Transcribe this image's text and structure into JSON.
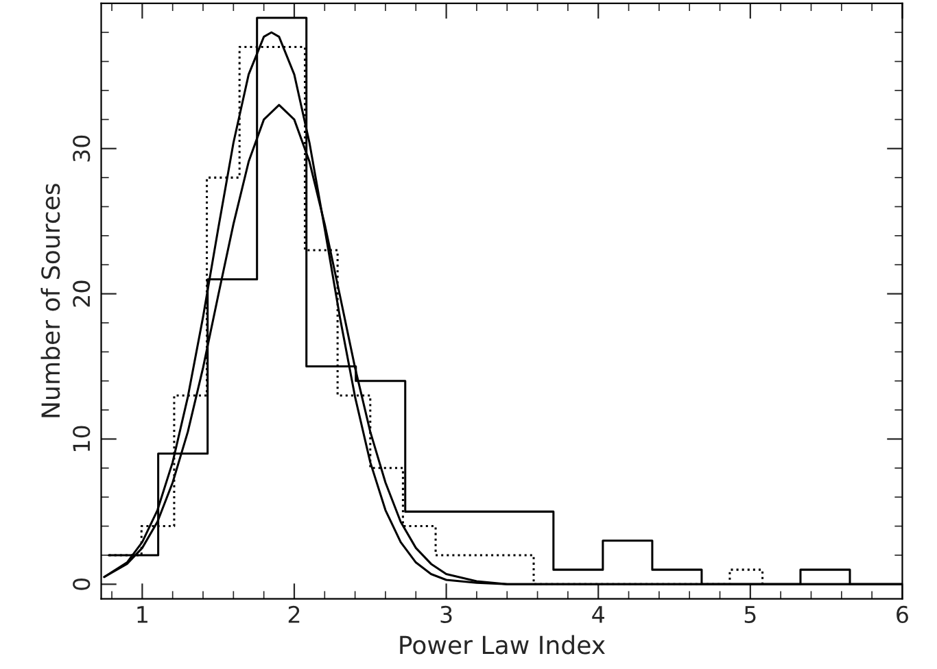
{
  "chart_data": {
    "type": "step",
    "xlabel": "Power Law Index",
    "ylabel": "Number of Sources",
    "xlim": [
      0.73,
      6
    ],
    "ylim": [
      -1,
      40
    ],
    "xticks": [
      {
        "value": 0.8,
        "label": null
      },
      1,
      {
        "value": 1.2,
        "label": null
      },
      {
        "value": 1.4,
        "label": null
      },
      {
        "value": 1.6,
        "label": null
      },
      {
        "value": 1.8,
        "label": null
      },
      2,
      {
        "value": 2.2,
        "label": null
      },
      {
        "value": 2.4,
        "label": null
      },
      {
        "value": 2.6,
        "label": null
      },
      {
        "value": 2.8,
        "label": null
      },
      3,
      {
        "value": 3.2,
        "label": null
      },
      {
        "value": 3.4,
        "label": null
      },
      {
        "value": 3.6,
        "label": null
      },
      {
        "value": 3.8,
        "label": null
      },
      4,
      {
        "value": 4.2,
        "label": null
      },
      {
        "value": 4.4,
        "label": null
      },
      {
        "value": 4.6,
        "label": null
      },
      {
        "value": 4.8,
        "label": null
      },
      5,
      {
        "value": 5.2,
        "label": null
      },
      {
        "value": 5.4,
        "label": null
      },
      {
        "value": 5.6,
        "label": null
      },
      {
        "value": 5.8,
        "label": null
      },
      6
    ],
    "yticks": [
      0,
      {
        "value": 2,
        "label": null
      },
      {
        "value": 4,
        "label": null
      },
      {
        "value": 6,
        "label": null
      },
      {
        "value": 8,
        "label": null
      },
      10,
      {
        "value": 12,
        "label": null
      },
      {
        "value": 14,
        "label": null
      },
      {
        "value": 16,
        "label": null
      },
      {
        "value": 18,
        "label": null
      },
      20,
      {
        "value": 22,
        "label": null
      },
      {
        "value": 24,
        "label": null
      },
      {
        "value": 26,
        "label": null
      },
      {
        "value": 28,
        "label": null
      },
      30,
      {
        "value": 32,
        "label": null
      },
      {
        "value": 34,
        "label": null
      },
      {
        "value": 36,
        "label": null
      },
      {
        "value": 38,
        "label": null
      }
    ],
    "grid": false,
    "legend": false,
    "series": [
      {
        "color": "#000000",
        "line_style": "solid",
        "x": [
          0.78,
          1.105,
          1.43,
          1.755,
          2.08,
          2.405,
          2.73,
          3.055,
          3.38,
          3.705,
          4.03,
          4.355,
          4.68,
          5.005,
          5.33,
          5.655,
          6.0
        ],
        "values": [
          2,
          9,
          21,
          39,
          15,
          14,
          5,
          5,
          5,
          1,
          3,
          1,
          0,
          0,
          1,
          0,
          0
        ]
      },
      {
        "color": "#000000",
        "line_style": "dotted",
        "x": [
          0.78,
          0.995,
          1.21,
          1.425,
          1.64,
          1.855,
          2.07,
          2.285,
          2.5,
          2.715,
          2.93,
          3.145,
          3.36,
          3.575,
          4.865,
          5.08
        ],
        "values": [
          2,
          4,
          13,
          28,
          37,
          37,
          23,
          13,
          8,
          4,
          2,
          2,
          2,
          0,
          1,
          0
        ]
      },
      {
        "type": "line",
        "color": "#000000",
        "line_style": "solid",
        "x": [
          0.75,
          0.9,
          1.0,
          1.1,
          1.2,
          1.3,
          1.4,
          1.5,
          1.6,
          1.7,
          1.8,
          1.85,
          1.9,
          2.0,
          2.1,
          2.2,
          2.3,
          2.4,
          2.5,
          2.6,
          2.7,
          2.8,
          2.9,
          3.0,
          3.2,
          3.4,
          3.6,
          4.0,
          5.0,
          6.0
        ],
        "values": [
          0.5,
          1.5,
          2.9,
          5.1,
          8.4,
          12.9,
          18.4,
          24.5,
          30.4,
          35.1,
          37.7,
          38,
          37.7,
          35.1,
          30.4,
          24.5,
          18.4,
          12.9,
          8.4,
          5.1,
          2.9,
          1.5,
          0.7,
          0.3,
          0.1,
          0,
          0,
          0,
          0,
          0
        ]
      },
      {
        "type": "line",
        "color": "#000000",
        "line_style": "solid",
        "x": [
          0.75,
          0.9,
          1.0,
          1.1,
          1.2,
          1.3,
          1.4,
          1.5,
          1.6,
          1.7,
          1.8,
          1.9,
          2.0,
          2.1,
          2.2,
          2.3,
          2.4,
          2.5,
          2.6,
          2.7,
          2.8,
          2.9,
          3.0,
          3.2,
          3.4,
          3.6,
          4.0,
          5.0,
          6.0
        ],
        "values": [
          0.5,
          1.4,
          2.5,
          4.3,
          7.0,
          10.5,
          14.9,
          19.9,
          24.8,
          29.1,
          32.0,
          33,
          32.0,
          29.1,
          24.8,
          19.9,
          14.9,
          10.5,
          7.0,
          4.3,
          2.5,
          1.4,
          0.7,
          0.2,
          0,
          0,
          0,
          0,
          0
        ]
      }
    ]
  }
}
